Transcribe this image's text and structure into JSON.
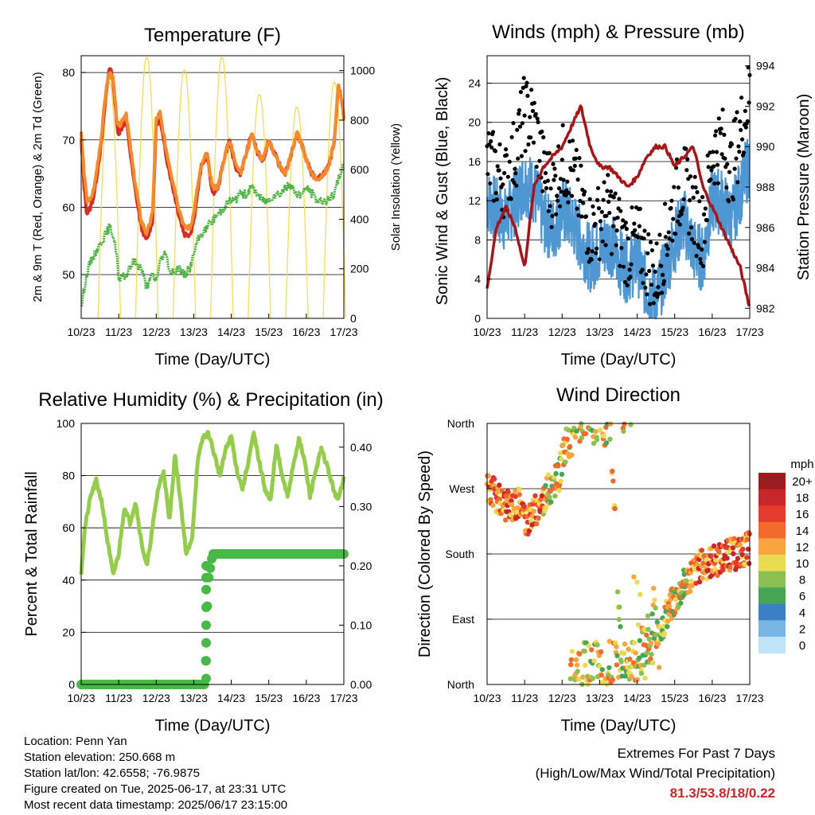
{
  "panels": {
    "temperature": {
      "title": "Temperature (F)",
      "xlabel": "Time (Day/UTC)",
      "ylabel_left": "2m & 9m T (Red, Orange) & 2m Td (Green)",
      "ylabel_right": "Solar Insolation (Yellow)"
    },
    "wind": {
      "title": "Winds (mph) & Pressure (mb)",
      "xlabel": "Time (Day/UTC)",
      "ylabel_left": "Sonic Wind & Gust (Blue, Black)",
      "ylabel_right": "Station Pressure (Maroon)"
    },
    "humidity": {
      "title": "Relative Humidity (%) & Precipitation (in)",
      "xlabel": "Time (Day/UTC)",
      "ylabel_left": "Percent & Total Rainfall"
    },
    "direction": {
      "title": "Wind Direction",
      "xlabel": "Time (Day/UTC)",
      "ylabel_left": "Direction (Colored By Speed)"
    }
  },
  "info": {
    "location": "Location: Penn Yan",
    "elevation": "Station elevation: 250.668 m",
    "latlon": "Station lat/lon: 42.6558; -76.9875",
    "created": "Figure created on Tue, 2025-06-17, at 23:31 UTC",
    "recent": "Most recent data timestamp: 2025/06/17 23:15:00"
  },
  "extremes": {
    "line1": "Extremes For Past 7 Days",
    "line2": "(High/Low/Max Wind/Total Precipitation)",
    "values": "81.3/53.8/18/0.22"
  },
  "colors": {
    "temp2m": "#d42e26",
    "temp9m": "#f28a2e",
    "dewpoint": "#4fb244",
    "solar": "#f5dc55",
    "wind": "#4f97d3",
    "gust": "#000000",
    "pressure": "#a4161a",
    "rh": "#96cc4e",
    "precip": "#48b846"
  },
  "chart_data": [
    {
      "id": "temperature",
      "type": "line",
      "title": "Temperature (F)",
      "xlabel": "Time (Day/UTC)",
      "x_ticks": [
        "10/23",
        "11/23",
        "12/23",
        "13/23",
        "14/23",
        "15/23",
        "16/23",
        "17/23"
      ],
      "ylim": [
        43.5,
        82.5
      ],
      "y_ticks": [
        50,
        60,
        70,
        80
      ],
      "y2lim": [
        0,
        1060
      ],
      "y2_ticks": [
        0,
        200,
        400,
        600,
        800,
        1000
      ],
      "grid": true,
      "x_days": [
        0,
        0.08,
        0.15,
        0.25,
        0.35,
        0.45,
        0.55,
        0.65,
        0.75,
        0.85,
        0.95,
        1.0,
        1.2,
        1.4,
        1.6,
        1.75,
        1.9,
        2.0,
        2.1,
        2.25,
        2.4,
        2.6,
        2.75,
        2.9,
        3.0,
        3.1,
        3.2,
        3.35,
        3.5,
        3.65,
        3.8,
        3.95,
        4.1,
        4.25,
        4.4,
        4.55,
        4.7,
        4.85,
        5.0,
        5.15,
        5.3,
        5.45,
        5.6,
        5.75,
        5.9,
        6.0,
        6.15,
        6.3,
        6.45,
        6.6,
        6.75,
        6.85,
        6.95,
        7.0
      ],
      "series": [
        {
          "name": "2m T",
          "color": "#d42e26",
          "values": [
            70,
            63,
            59,
            60,
            62,
            66,
            70,
            76,
            81,
            79,
            72,
            71,
            73,
            64,
            57,
            55,
            58,
            72,
            73,
            68,
            64,
            59,
            56,
            56,
            58,
            62,
            66,
            68,
            62,
            63,
            67,
            70,
            66,
            65,
            68,
            71,
            68,
            67,
            70,
            68,
            66,
            65,
            68,
            71,
            69,
            67,
            65,
            64,
            65,
            66,
            70,
            78,
            76,
            73
          ]
        },
        {
          "name": "9m T",
          "color": "#f28a2e",
          "values": [
            71,
            65,
            61,
            61,
            63,
            67,
            71,
            77,
            80,
            79,
            73,
            72,
            74,
            65,
            58,
            56,
            59,
            73,
            74,
            69,
            65,
            60,
            57,
            57,
            59,
            63,
            66,
            68,
            63,
            63,
            67,
            70,
            67,
            65,
            68,
            71,
            68,
            67,
            70,
            68,
            66,
            65,
            68,
            71,
            69,
            67,
            65,
            64,
            65,
            66,
            70,
            78,
            76,
            73
          ]
        },
        {
          "name": "2m Td",
          "color": "#4fb244",
          "values": [
            45,
            48,
            50,
            52,
            53,
            54,
            55,
            56,
            57,
            56,
            53,
            49,
            50,
            52,
            51,
            48,
            50,
            49,
            52,
            53,
            50,
            51,
            50,
            51,
            53,
            55,
            56,
            57,
            58,
            59,
            60,
            61,
            61,
            62,
            62,
            63,
            62,
            61,
            61,
            62,
            62,
            63,
            63,
            62,
            62,
            63,
            62,
            61,
            61,
            61,
            62,
            64,
            66,
            66
          ]
        },
        {
          "name": "Solar Insolation",
          "color": "#f5dc55",
          "axis": "right",
          "daily_peak": [
            950,
            1050,
            1000,
            1050,
            900,
            850,
            950,
            850
          ]
        }
      ]
    },
    {
      "id": "winds",
      "type": "scatter",
      "title": "Winds (mph) & Pressure (mb)",
      "xlabel": "Time (Day/UTC)",
      "x_ticks": [
        "10/23",
        "11/23",
        "12/23",
        "13/23",
        "14/23",
        "15/23",
        "16/23",
        "17/23"
      ],
      "ylim": [
        0,
        26.8
      ],
      "y_ticks": [
        0,
        4,
        8,
        12,
        16,
        20,
        24
      ],
      "y2lim": [
        981.5,
        994.5
      ],
      "y2_ticks": [
        982,
        984,
        986,
        988,
        990,
        992,
        994
      ],
      "grid": true,
      "x_days": [
        0,
        0.25,
        0.5,
        0.75,
        1.0,
        1.25,
        1.5,
        1.75,
        2.0,
        2.25,
        2.5,
        2.75,
        3.0,
        3.25,
        3.5,
        3.75,
        4.0,
        4.25,
        4.5,
        4.75,
        5.0,
        5.25,
        5.5,
        5.75,
        6.0,
        6.25,
        6.5,
        6.75,
        7.0
      ],
      "series": [
        {
          "name": "Sonic Wind",
          "color": "#4f97d3",
          "values": [
            12,
            11,
            10,
            12,
            14,
            13,
            10,
            9,
            11,
            10,
            8,
            6,
            7,
            8,
            6,
            5,
            6,
            3,
            2,
            5,
            8,
            10,
            7,
            6,
            12,
            12,
            10,
            13,
            16
          ]
        },
        {
          "name": "Gust",
          "color": "#000000",
          "values": [
            16,
            15,
            14,
            17,
            21,
            20,
            15,
            13,
            16,
            15,
            12,
            9,
            10,
            11,
            9,
            7,
            8,
            6,
            4,
            8,
            12,
            14,
            11,
            9,
            17,
            18,
            15,
            19,
            23
          ]
        },
        {
          "name": "Station Pressure",
          "color": "#a4161a",
          "axis": "right",
          "values": [
            983,
            986,
            987,
            986,
            984,
            988,
            989,
            989.5,
            990,
            991,
            992,
            990,
            989,
            989,
            988.5,
            988,
            988.5,
            989.5,
            990,
            990,
            989,
            989.5,
            990,
            988,
            987,
            986,
            985,
            984,
            982
          ]
        }
      ]
    },
    {
      "id": "humidity",
      "type": "line",
      "title": "Relative Humidity (%) & Precipitation (in)",
      "xlabel": "Time (Day/UTC)",
      "x_ticks": [
        "10/23",
        "11/23",
        "12/23",
        "13/23",
        "14/23",
        "15/23",
        "16/23",
        "17/23"
      ],
      "ylim": [
        0,
        100
      ],
      "y_ticks": [
        0,
        20,
        40,
        60,
        80,
        100
      ],
      "y2lim": [
        0,
        0.44
      ],
      "y2_ticks": [
        "0.00",
        "0.10",
        "0.20",
        "0.30",
        "0.40"
      ],
      "grid": true,
      "x_days": [
        0,
        0.1,
        0.25,
        0.4,
        0.55,
        0.7,
        0.85,
        1.0,
        1.15,
        1.3,
        1.45,
        1.6,
        1.75,
        1.9,
        2.05,
        2.2,
        2.35,
        2.5,
        2.65,
        2.8,
        2.95,
        3.1,
        3.25,
        3.4,
        3.55,
        3.7,
        3.85,
        4.0,
        4.15,
        4.3,
        4.45,
        4.6,
        4.75,
        4.9,
        5.05,
        5.2,
        5.35,
        5.5,
        5.65,
        5.8,
        5.95,
        6.1,
        6.25,
        6.4,
        6.55,
        6.7,
        6.85,
        7.0
      ],
      "series": [
        {
          "name": "Relative Humidity",
          "color": "#96cc4e",
          "values": [
            43,
            60,
            72,
            78,
            70,
            55,
            42,
            50,
            68,
            62,
            70,
            55,
            45,
            60,
            75,
            82,
            62,
            88,
            70,
            50,
            55,
            85,
            95,
            96,
            88,
            80,
            90,
            95,
            82,
            75,
            85,
            96,
            85,
            75,
            70,
            92,
            80,
            72,
            84,
            94,
            86,
            72,
            82,
            90,
            84,
            76,
            70,
            80
          ]
        },
        {
          "name": "Total Rainfall",
          "color": "#48b846",
          "axis": "right",
          "x": [
            0,
            3.3,
            3.32,
            3.35,
            3.4,
            3.5,
            7.0
          ],
          "values": [
            0,
            0,
            0.04,
            0.12,
            0.18,
            0.22,
            0.22
          ]
        }
      ]
    },
    {
      "id": "direction",
      "type": "scatter",
      "title": "Wind Direction",
      "xlabel": "Time (Day/UTC)",
      "x_ticks": [
        "10/23",
        "11/23",
        "12/23",
        "13/23",
        "14/23",
        "15/23",
        "16/23",
        "17/23"
      ],
      "y_ticks": [
        "North",
        "East",
        "South",
        "West",
        "North"
      ],
      "ylim": [
        0,
        360
      ],
      "legend_title": "mph",
      "legend_labels": [
        "20+",
        "18",
        "16",
        "14",
        "12",
        "10",
        "8",
        "6",
        "4",
        "2",
        "0"
      ],
      "legend_colors": [
        "#9b1b1e",
        "#c8262b",
        "#e53b2c",
        "#f26a2c",
        "#f9a440",
        "#e9dc52",
        "#8cc152",
        "#48a557",
        "#3b7fc4",
        "#7ab6e3",
        "#bfe3f7"
      ],
      "x_days": [
        0,
        0.3,
        0.6,
        0.9,
        1.0,
        1.3,
        1.6,
        1.9,
        2.1,
        2.4,
        2.7,
        3.0,
        3.3,
        3.6,
        3.9,
        4.2,
        4.5,
        4.8,
        5.1,
        5.4,
        5.7,
        6.0,
        6.3,
        6.6,
        6.9,
        7.0
      ],
      "series": [
        {
          "name": "Direction",
          "values": [
            275,
            255,
            245,
            255,
            225,
            240,
            265,
            285,
            330,
            345,
            350,
            355,
            340,
            10,
            20,
            30,
            60,
            100,
            125,
            150,
            165,
            170,
            175,
            180,
            185,
            190
          ]
        }
      ]
    }
  ]
}
